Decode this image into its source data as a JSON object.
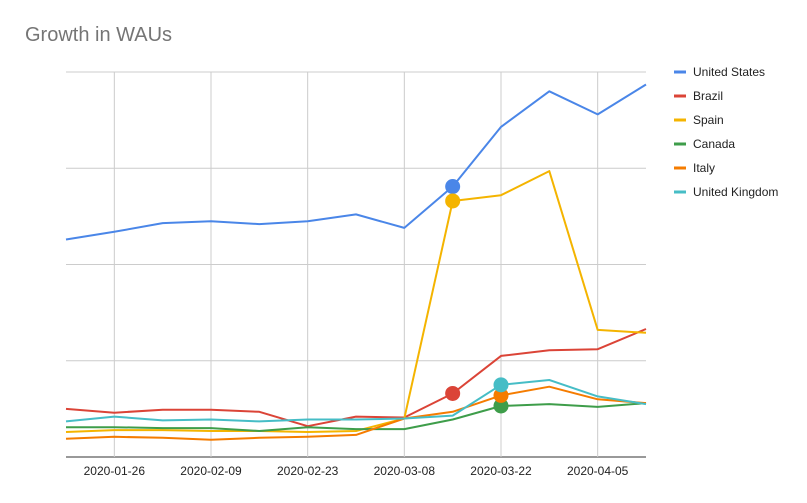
{
  "chart_data": {
    "type": "line",
    "title": "Growth in WAUs",
    "xlabel": "",
    "ylabel": "",
    "x": [
      "2020-01-19",
      "2020-01-26",
      "2020-02-02",
      "2020-02-09",
      "2020-02-16",
      "2020-02-23",
      "2020-03-01",
      "2020-03-08",
      "2020-03-15",
      "2020-03-22",
      "2020-03-29",
      "2020-04-05",
      "2020-04-12"
    ],
    "x_tick_labels": [
      "2020-01-26",
      "2020-02-09",
      "2020-02-23",
      "2020-03-08",
      "2020-03-22",
      "2020-04-05"
    ],
    "ylim": [
      0,
      400
    ],
    "y_gridlines": [
      0,
      100,
      200,
      300,
      400
    ],
    "grid": true,
    "legend_position": "right",
    "series": [
      {
        "name": "United States",
        "color": "#4a86e8",
        "values": [
          226,
          234,
          243,
          245,
          242,
          245,
          252,
          238,
          281,
          343,
          380,
          356,
          387
        ],
        "highlight_index": 8
      },
      {
        "name": "Brazil",
        "color": "#db4437",
        "values": [
          50,
          46,
          49,
          49,
          47,
          32,
          42,
          41,
          66,
          105,
          111,
          112,
          133
        ],
        "highlight_index": 8
      },
      {
        "name": "Spain",
        "color": "#f4b400",
        "values": [
          26,
          28,
          28,
          27,
          27,
          26,
          27,
          40,
          266,
          272,
          297,
          132,
          129
        ],
        "highlight_index": 8
      },
      {
        "name": "Canada",
        "color": "#3e9d4a",
        "values": [
          31,
          31,
          30,
          30,
          27,
          31,
          29,
          29,
          39,
          53,
          55,
          52,
          56
        ],
        "highlight_index": 9
      },
      {
        "name": "Italy",
        "color": "#f57c00",
        "values": [
          19,
          21,
          20,
          18,
          20,
          21,
          23,
          40,
          47,
          64,
          73,
          60,
          56
        ],
        "highlight_index": 9
      },
      {
        "name": "United Kingdom",
        "color": "#46bdc6",
        "values": [
          37,
          42,
          38,
          39,
          37,
          39,
          39,
          40,
          43,
          75,
          80,
          63,
          55
        ],
        "highlight_index": 9
      }
    ]
  }
}
